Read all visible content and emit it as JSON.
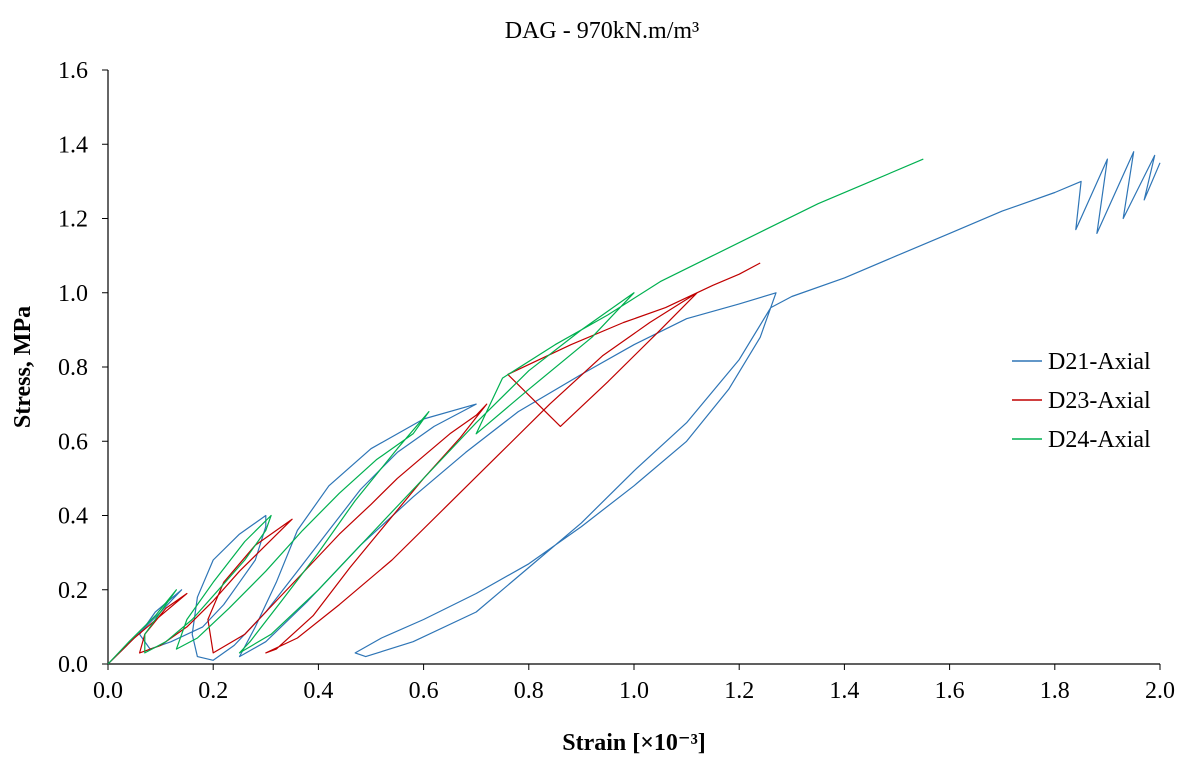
{
  "chart_data": {
    "type": "line",
    "title": "DAG - 970kN.m/m³",
    "xlabel": "Strain [×10⁻³]",
    "ylabel": "Stress, MPa",
    "xlim": [
      0,
      2.0
    ],
    "ylim": [
      0,
      1.6
    ],
    "x_ticks": [
      "0.0",
      "0.2",
      "0.4",
      "0.6",
      "0.8",
      "1.0",
      "1.2",
      "1.4",
      "1.6",
      "1.8",
      "2.0"
    ],
    "y_ticks": [
      "0.0",
      "0.2",
      "0.4",
      "0.6",
      "0.8",
      "1.0",
      "1.2",
      "1.4",
      "1.6"
    ],
    "grid": false,
    "legend_position": "right",
    "series": [
      {
        "name": "D21-Axial",
        "color": "#2E75B6",
        "points": [
          [
            0,
            0
          ],
          [
            0.05,
            0.07
          ],
          [
            0.1,
            0.14
          ],
          [
            0.14,
            0.2
          ],
          [
            0.09,
            0.14
          ],
          [
            0.06,
            0.08
          ],
          [
            0.08,
            0.04
          ],
          [
            0.12,
            0.06
          ],
          [
            0.18,
            0.1
          ],
          [
            0.22,
            0.16
          ],
          [
            0.25,
            0.22
          ],
          [
            0.28,
            0.28
          ],
          [
            0.3,
            0.37
          ],
          [
            0.3,
            0.4
          ],
          [
            0.25,
            0.35
          ],
          [
            0.2,
            0.28
          ],
          [
            0.17,
            0.18
          ],
          [
            0.16,
            0.08
          ],
          [
            0.17,
            0.02
          ],
          [
            0.2,
            0.01
          ],
          [
            0.24,
            0.05
          ],
          [
            0.3,
            0.14
          ],
          [
            0.36,
            0.25
          ],
          [
            0.42,
            0.36
          ],
          [
            0.48,
            0.47
          ],
          [
            0.55,
            0.57
          ],
          [
            0.62,
            0.64
          ],
          [
            0.7,
            0.7
          ],
          [
            0.6,
            0.66
          ],
          [
            0.5,
            0.58
          ],
          [
            0.42,
            0.48
          ],
          [
            0.36,
            0.36
          ],
          [
            0.32,
            0.22
          ],
          [
            0.28,
            0.1
          ],
          [
            0.25,
            0.02
          ],
          [
            0.3,
            0.06
          ],
          [
            0.38,
            0.17
          ],
          [
            0.48,
            0.32
          ],
          [
            0.58,
            0.45
          ],
          [
            0.68,
            0.57
          ],
          [
            0.78,
            0.68
          ],
          [
            0.9,
            0.78
          ],
          [
            1.0,
            0.86
          ],
          [
            1.1,
            0.93
          ],
          [
            1.2,
            0.97
          ],
          [
            1.27,
            1.0
          ],
          [
            1.24,
            0.88
          ],
          [
            1.18,
            0.74
          ],
          [
            1.1,
            0.6
          ],
          [
            1.0,
            0.48
          ],
          [
            0.9,
            0.37
          ],
          [
            0.8,
            0.27
          ],
          [
            0.7,
            0.19
          ],
          [
            0.6,
            0.12
          ],
          [
            0.52,
            0.07
          ],
          [
            0.47,
            0.03
          ],
          [
            0.49,
            0.02
          ],
          [
            0.58,
            0.06
          ],
          [
            0.7,
            0.14
          ],
          [
            0.8,
            0.26
          ],
          [
            0.9,
            0.38
          ],
          [
            1.0,
            0.52
          ],
          [
            1.1,
            0.65
          ],
          [
            1.2,
            0.82
          ],
          [
            1.26,
            0.96
          ],
          [
            1.3,
            0.99
          ],
          [
            1.4,
            1.04
          ],
          [
            1.5,
            1.1
          ],
          [
            1.6,
            1.16
          ],
          [
            1.7,
            1.22
          ],
          [
            1.8,
            1.27
          ],
          [
            1.85,
            1.3
          ],
          [
            1.84,
            1.17
          ],
          [
            1.9,
            1.36
          ],
          [
            1.88,
            1.16
          ],
          [
            1.95,
            1.38
          ],
          [
            1.93,
            1.2
          ],
          [
            1.99,
            1.37
          ],
          [
            1.97,
            1.25
          ],
          [
            2.0,
            1.35
          ]
        ]
      },
      {
        "name": "D23-Axial",
        "color": "#C00000",
        "points": [
          [
            0,
            0
          ],
          [
            0.05,
            0.07
          ],
          [
            0.1,
            0.13
          ],
          [
            0.15,
            0.19
          ],
          [
            0.11,
            0.15
          ],
          [
            0.07,
            0.08
          ],
          [
            0.06,
            0.03
          ],
          [
            0.1,
            0.05
          ],
          [
            0.15,
            0.1
          ],
          [
            0.2,
            0.17
          ],
          [
            0.25,
            0.25
          ],
          [
            0.3,
            0.32
          ],
          [
            0.35,
            0.39
          ],
          [
            0.28,
            0.32
          ],
          [
            0.22,
            0.22
          ],
          [
            0.19,
            0.12
          ],
          [
            0.2,
            0.03
          ],
          [
            0.26,
            0.08
          ],
          [
            0.32,
            0.17
          ],
          [
            0.38,
            0.26
          ],
          [
            0.44,
            0.35
          ],
          [
            0.5,
            0.43
          ],
          [
            0.55,
            0.5
          ],
          [
            0.6,
            0.56
          ],
          [
            0.65,
            0.62
          ],
          [
            0.7,
            0.67
          ],
          [
            0.72,
            0.7
          ],
          [
            0.67,
            0.61
          ],
          [
            0.6,
            0.5
          ],
          [
            0.53,
            0.38
          ],
          [
            0.46,
            0.26
          ],
          [
            0.39,
            0.13
          ],
          [
            0.32,
            0.04
          ],
          [
            0.3,
            0.03
          ],
          [
            0.36,
            0.07
          ],
          [
            0.44,
            0.16
          ],
          [
            0.54,
            0.28
          ],
          [
            0.64,
            0.42
          ],
          [
            0.74,
            0.56
          ],
          [
            0.84,
            0.7
          ],
          [
            0.94,
            0.83
          ],
          [
            1.03,
            0.92
          ],
          [
            1.12,
            1.0
          ],
          [
            1.05,
            0.9
          ],
          [
            0.95,
            0.76
          ],
          [
            0.86,
            0.64
          ],
          [
            0.76,
            0.78
          ],
          [
            0.88,
            0.86
          ],
          [
            0.98,
            0.92
          ],
          [
            1.06,
            0.96
          ],
          [
            1.15,
            1.02
          ],
          [
            1.2,
            1.05
          ],
          [
            1.24,
            1.08
          ]
        ]
      },
      {
        "name": "D24-Axial",
        "color": "#00B050",
        "points": [
          [
            0,
            0
          ],
          [
            0.04,
            0.06
          ],
          [
            0.09,
            0.13
          ],
          [
            0.13,
            0.2
          ],
          [
            0.1,
            0.14
          ],
          [
            0.07,
            0.08
          ],
          [
            0.07,
            0.03
          ],
          [
            0.11,
            0.06
          ],
          [
            0.16,
            0.12
          ],
          [
            0.21,
            0.2
          ],
          [
            0.26,
            0.28
          ],
          [
            0.3,
            0.36
          ],
          [
            0.31,
            0.4
          ],
          [
            0.26,
            0.33
          ],
          [
            0.2,
            0.22
          ],
          [
            0.15,
            0.12
          ],
          [
            0.13,
            0.04
          ],
          [
            0.17,
            0.07
          ],
          [
            0.23,
            0.15
          ],
          [
            0.3,
            0.25
          ],
          [
            0.37,
            0.36
          ],
          [
            0.44,
            0.46
          ],
          [
            0.51,
            0.55
          ],
          [
            0.58,
            0.62
          ],
          [
            0.61,
            0.68
          ],
          [
            0.55,
            0.58
          ],
          [
            0.47,
            0.44
          ],
          [
            0.4,
            0.3
          ],
          [
            0.33,
            0.17
          ],
          [
            0.27,
            0.06
          ],
          [
            0.25,
            0.03
          ],
          [
            0.31,
            0.08
          ],
          [
            0.4,
            0.2
          ],
          [
            0.5,
            0.35
          ],
          [
            0.6,
            0.5
          ],
          [
            0.7,
            0.65
          ],
          [
            0.8,
            0.79
          ],
          [
            0.9,
            0.9
          ],
          [
            0.97,
            0.97
          ],
          [
            1.0,
            1.0
          ],
          [
            0.92,
            0.88
          ],
          [
            0.8,
            0.74
          ],
          [
            0.7,
            0.62
          ],
          [
            0.75,
            0.77
          ],
          [
            0.85,
            0.86
          ],
          [
            0.95,
            0.94
          ],
          [
            1.05,
            1.03
          ],
          [
            1.15,
            1.1
          ],
          [
            1.25,
            1.17
          ],
          [
            1.35,
            1.24
          ],
          [
            1.45,
            1.3
          ],
          [
            1.55,
            1.36
          ]
        ]
      }
    ]
  }
}
